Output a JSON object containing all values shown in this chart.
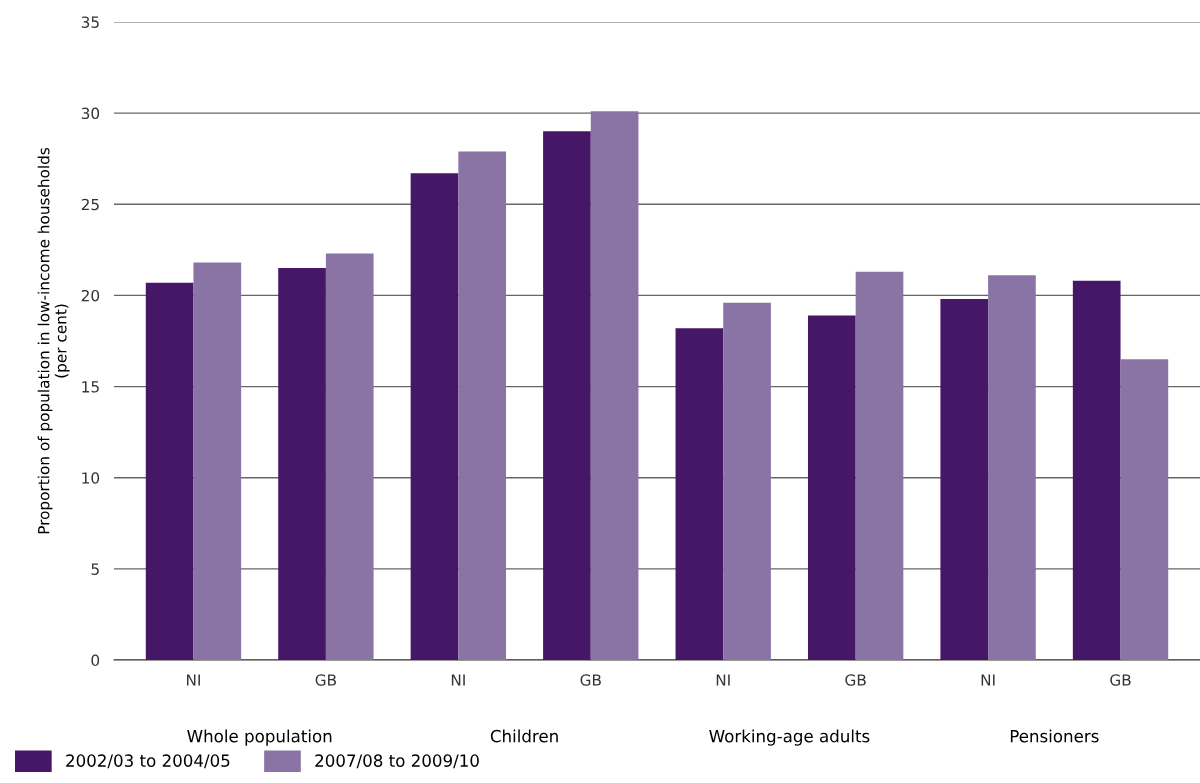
{
  "chart_data": {
    "type": "bar",
    "ylabel": "Proportion of population in low-income households\n(per cent)",
    "categories": [
      "NI",
      "GB",
      "NI",
      "GB",
      "NI",
      "GB",
      "NI",
      "GB"
    ],
    "series": [
      {
        "name": "2002/03 to 2004/05",
        "color": "#461667",
        "values": [
          20.7,
          21.5,
          26.7,
          29.0,
          18.2,
          18.9,
          19.8,
          20.8
        ]
      },
      {
        "name": "2007/08 to 2009/10",
        "color": "#8a74a5",
        "values": [
          21.8,
          22.3,
          27.9,
          30.1,
          19.6,
          21.3,
          21.1,
          16.5
        ]
      }
    ],
    "annotations": [
      "Whole population",
      "Children",
      "Working-age adults",
      "Pensioners"
    ],
    "ylim": [
      0,
      35
    ],
    "yticks": [
      0,
      5,
      10,
      15,
      20,
      25,
      30,
      35
    ],
    "grid": "y",
    "legend": "bottom left"
  }
}
